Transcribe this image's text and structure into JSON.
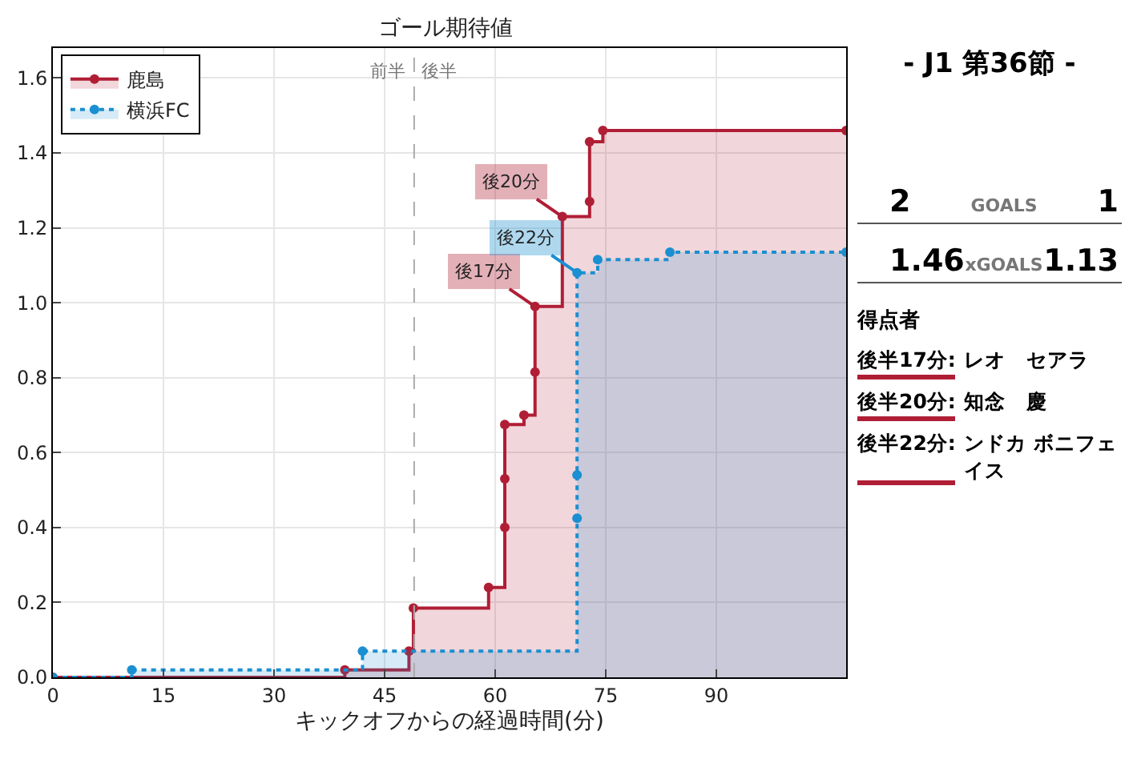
{
  "chart_data": [
    {
      "type": "step",
      "title": "ゴール期待値",
      "xlabel": "キックオフからの経過時間(分)",
      "xlim": [
        0,
        107.6
      ],
      "ylim": [
        0,
        1.68
      ],
      "xticks": [
        0,
        15,
        30,
        45,
        60,
        75,
        90
      ],
      "yticks": [
        {
          "value": 0,
          "label": "0.0"
        },
        {
          "value": 0.2,
          "label": "0.2"
        },
        {
          "value": 0.4,
          "label": "0.4"
        },
        {
          "value": 0.6,
          "label": "0.6"
        },
        {
          "value": 0.8,
          "label": "0.8"
        },
        {
          "value": 1.0,
          "label": "1.0"
        },
        {
          "value": 1.2,
          "label": "1.2"
        },
        {
          "value": 1.4,
          "label": "1.4"
        },
        {
          "value": 1.6,
          "label": "1.6"
        }
      ],
      "grid": true,
      "legend": "top left",
      "marker": "circle",
      "series": [
        {
          "name": "鹿島",
          "color": "#b01e35",
          "line_style": "solid",
          "x": [
            0,
            39.6,
            48.3,
            48.9,
            59.1,
            61.3,
            61.3,
            61.3,
            63.9,
            65.4,
            65.4,
            69.1,
            72.8,
            72.8,
            74.6,
            107.6
          ],
          "values": [
            0,
            0.02,
            0.07,
            0.185,
            0.24,
            0.4,
            0.53,
            0.675,
            0.7,
            0.815,
            0.99,
            1.23,
            1.27,
            1.43,
            1.46,
            1.46
          ]
        },
        {
          "name": "横浜FC",
          "color": "#1a8fd1",
          "line_style": "dotted",
          "x": [
            0,
            10.7,
            42,
            71.1,
            71.1,
            71.1,
            73.9,
            83.7,
            107.6
          ],
          "values": [
            0,
            0.02,
            0.07,
            0.425,
            0.54,
            1.08,
            1.115,
            1.135,
            1.135
          ]
        }
      ],
      "ref_lines": [
        {
          "axis": "x",
          "value": 49,
          "label": null,
          "color": "#aaaaaa",
          "line_style": "dashed"
        }
      ],
      "annotations": [
        "前半",
        "後半",
        {
          "text": "後17分",
          "x": 65.4,
          "y": 0.99
        },
        {
          "text": "後20分",
          "x": 69.1,
          "y": 1.23
        },
        {
          "text": "後22分",
          "x": 71.1,
          "y": 1.08
        }
      ]
    },
    {
      "type": "other",
      "title": "- J1 第36節 -",
      "annotations": [
        "2",
        "GOALS",
        "1",
        "1.46",
        "xGOALS",
        "1.13",
        "得点者",
        "後半17分:",
        "レオ　セアラ",
        "後半20分:",
        "知念　慶",
        "後半22分:",
        "ンドカ ボニフェイス"
      ]
    }
  ]
}
